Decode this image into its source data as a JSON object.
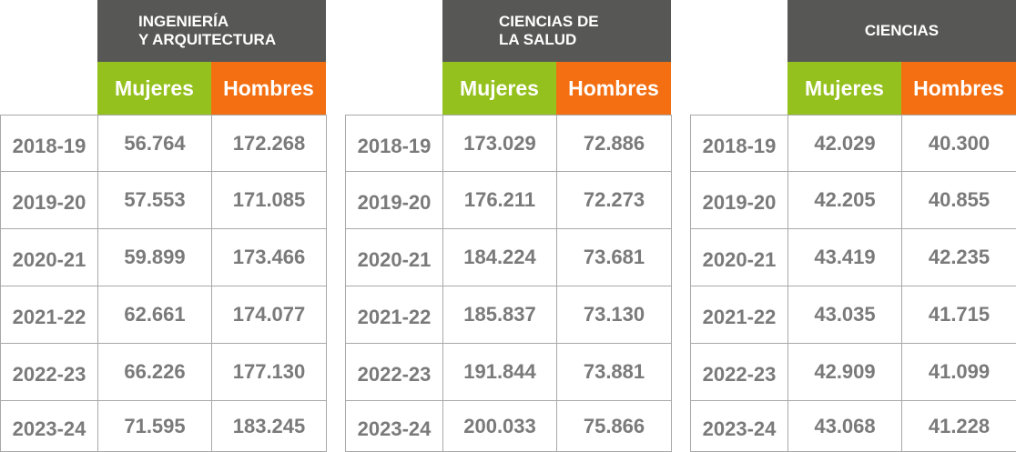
{
  "colors": {
    "header": "#575756",
    "mujeres": "#95c11f",
    "hombres": "#f36f12",
    "text": "#7a7a7a",
    "border": "#a8a8a8"
  },
  "chart_data": {
    "type": "table",
    "years": [
      "2018-19",
      "2019-20",
      "2020-21",
      "2021-22",
      "2022-23",
      "2023-24"
    ],
    "column_labels": {
      "mujeres": "Mujeres",
      "hombres": "Hombres"
    },
    "tables": [
      {
        "title": "INGENIERÍA\nY ARQUITECTURA",
        "mujeres": [
          "56.764",
          "57.553",
          "59.899",
          "62.661",
          "66.226",
          "71.595"
        ],
        "hombres": [
          "172.268",
          "171.085",
          "173.466",
          "174.077",
          "177.130",
          "183.245"
        ]
      },
      {
        "title": "CIENCIAS DE\nLA SALUD",
        "mujeres": [
          "173.029",
          "176.211",
          "184.224",
          "185.837",
          "191.844",
          "200.033"
        ],
        "hombres": [
          "72.886",
          "72.273",
          "73.681",
          "73.130",
          "73.881",
          "75.866"
        ]
      },
      {
        "title": "CIENCIAS",
        "mujeres": [
          "42.029",
          "42.205",
          "43.419",
          "43.035",
          "42.909",
          "43.068"
        ],
        "hombres": [
          "40.300",
          "40.855",
          "42.235",
          "41.715",
          "41.099",
          "41.228"
        ]
      }
    ]
  }
}
